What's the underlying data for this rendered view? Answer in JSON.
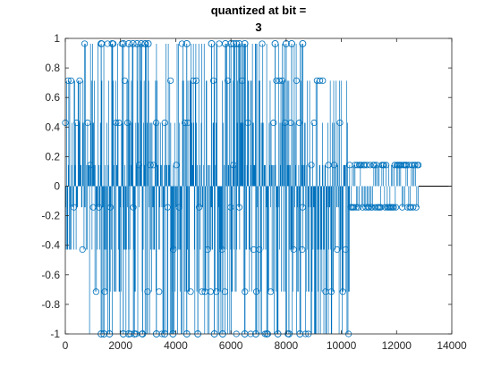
{
  "chart_data": {
    "type": "stem",
    "title_lines": [
      "quantized at bit =",
      "3"
    ],
    "xlabel": "",
    "ylabel": "",
    "xlim": [
      0,
      14000
    ],
    "ylim": [
      -1,
      1
    ],
    "xticks": [
      0,
      2000,
      4000,
      6000,
      8000,
      10000,
      12000,
      14000
    ],
    "yticks": [
      -1,
      -0.8,
      -0.6,
      -0.4,
      -0.2,
      0,
      0.2,
      0.4,
      0.6,
      0.8,
      1
    ],
    "xtick_labels": [
      "0",
      "2000",
      "4000",
      "6000",
      "8000",
      "10000",
      "12000",
      "14000"
    ],
    "ytick_labels": [
      "-1",
      "-0.8",
      "-0.6",
      "-0.4",
      "-0.2",
      "0",
      "0.2",
      "0.4",
      "0.6",
      "0.8",
      "1"
    ],
    "grid": false,
    "series": [
      {
        "color": "#0072BD",
        "marker": "circle",
        "quantization_levels": [
          -1,
          -0.714,
          -0.429,
          -0.143,
          0.143,
          0.429,
          0.714,
          0.964
        ],
        "sample_count": 12800,
        "segments": [
          {
            "x_start": 0,
            "x_end": 700,
            "levels": [
              0.143,
              -0.143,
              0.429,
              -0.429,
              0.714
            ]
          },
          {
            "x_start": 700,
            "x_end": 8600,
            "levels": [
              0.964,
              0.714,
              0.429,
              0.143,
              -0.143,
              -0.429,
              -0.714,
              -1
            ]
          },
          {
            "x_start": 8600,
            "x_end": 10300,
            "levels": [
              0.714,
              0.429,
              0.143,
              -0.143,
              -0.429,
              -0.714,
              -1
            ]
          },
          {
            "x_start": 10300,
            "x_end": 12800,
            "levels": [
              0.143,
              -0.143
            ]
          }
        ],
        "extreme_points": [
          {
            "x": 1300,
            "y": 0.964
          },
          {
            "x": 1700,
            "y": 0.964
          },
          {
            "x": 2100,
            "y": 0.964
          },
          {
            "x": 2300,
            "y": 0.964
          },
          {
            "x": 2450,
            "y": 0.964
          },
          {
            "x": 2600,
            "y": 0.964
          },
          {
            "x": 2750,
            "y": 0.964
          },
          {
            "x": 2900,
            "y": 0.964
          },
          {
            "x": 3000,
            "y": 0.964
          },
          {
            "x": 4400,
            "y": 0.964
          },
          {
            "x": 5300,
            "y": 0.964
          },
          {
            "x": 5800,
            "y": 0.964
          },
          {
            "x": 6000,
            "y": 0.964
          },
          {
            "x": 6100,
            "y": 0.964
          },
          {
            "x": 6200,
            "y": 0.964
          },
          {
            "x": 6300,
            "y": 0.964
          },
          {
            "x": 6500,
            "y": 0.964
          },
          {
            "x": 7600,
            "y": 0.964
          },
          {
            "x": 8000,
            "y": 0.964
          },
          {
            "x": 8200,
            "y": 0.964
          },
          {
            "x": 8600,
            "y": 0.964
          },
          {
            "x": 1300,
            "y": -1
          },
          {
            "x": 1400,
            "y": -1
          },
          {
            "x": 1600,
            "y": -1
          },
          {
            "x": 2100,
            "y": -1
          },
          {
            "x": 2300,
            "y": -1
          },
          {
            "x": 2500,
            "y": -1
          },
          {
            "x": 2800,
            "y": -1
          },
          {
            "x": 3300,
            "y": -1
          },
          {
            "x": 3600,
            "y": -1
          },
          {
            "x": 3900,
            "y": -1
          },
          {
            "x": 4400,
            "y": -1
          },
          {
            "x": 4800,
            "y": -1
          },
          {
            "x": 5400,
            "y": -1
          },
          {
            "x": 5700,
            "y": -1
          },
          {
            "x": 6500,
            "y": -1
          },
          {
            "x": 6900,
            "y": -1
          },
          {
            "x": 7300,
            "y": -1
          },
          {
            "x": 7700,
            "y": -1
          },
          {
            "x": 8100,
            "y": -1
          },
          {
            "x": 8500,
            "y": -1
          }
        ]
      }
    ]
  }
}
